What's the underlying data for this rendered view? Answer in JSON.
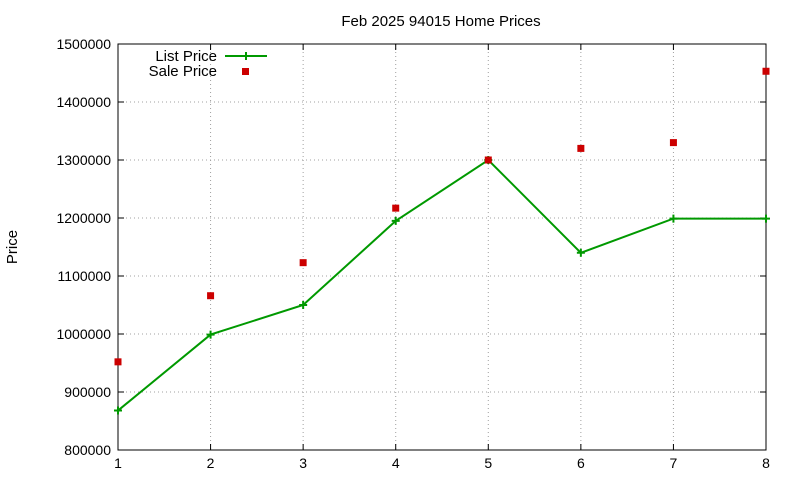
{
  "chart_data": {
    "type": "line",
    "title": "Feb 2025 94015 Home Prices",
    "xlabel": "",
    "ylabel": "Price",
    "x": [
      1,
      2,
      3,
      4,
      5,
      6,
      7,
      8
    ],
    "xlim": [
      1,
      8
    ],
    "ylim": [
      800000,
      1500000
    ],
    "xticks": [
      "1",
      "2",
      "3",
      "4",
      "5",
      "6",
      "7",
      "8"
    ],
    "yticks": [
      "800000",
      "900000",
      "1000000",
      "1100000",
      "1200000",
      "1300000",
      "1400000",
      "1500000"
    ],
    "grid": true,
    "legend": "top-left",
    "series": [
      {
        "name": "List Price",
        "style": "line-plus",
        "color": "#009900",
        "values": [
          868000,
          999000,
          1050000,
          1195000,
          1300000,
          1140000,
          1199000,
          1199000
        ]
      },
      {
        "name": "Sale Price",
        "style": "square-points",
        "color": "#cc0000",
        "values": [
          952000,
          1066000,
          1123000,
          1217000,
          1300000,
          1320000,
          1330000,
          1453000
        ]
      }
    ]
  }
}
